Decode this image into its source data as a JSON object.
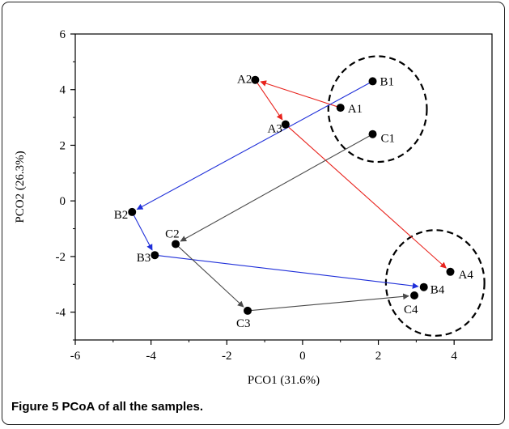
{
  "chart_data": {
    "type": "scatter",
    "title": "",
    "xlabel": "PCO1 (31.6%)",
    "ylabel": "PCO2 (26.3%)",
    "xlim": [
      -6,
      5
    ],
    "ylim": [
      -5,
      6
    ],
    "x_ticks": [
      -6,
      -4,
      -2,
      0,
      2,
      4
    ],
    "y_ticks": [
      -4,
      -2,
      0,
      2,
      4,
      6
    ],
    "grid": false,
    "points": [
      {
        "label": "A1",
        "x": 1.0,
        "y": 3.35
      },
      {
        "label": "A2",
        "x": -1.25,
        "y": 4.35
      },
      {
        "label": "A3",
        "x": -0.45,
        "y": 2.75
      },
      {
        "label": "A4",
        "x": 3.9,
        "y": -2.55
      },
      {
        "label": "B1",
        "x": 1.85,
        "y": 4.3
      },
      {
        "label": "B2",
        "x": -4.5,
        "y": -0.4
      },
      {
        "label": "B3",
        "x": -3.9,
        "y": -1.95
      },
      {
        "label": "B4",
        "x": 3.2,
        "y": -3.1
      },
      {
        "label": "C1",
        "x": 1.85,
        "y": 2.4
      },
      {
        "label": "C2",
        "x": -3.35,
        "y": -1.55
      },
      {
        "label": "C3",
        "x": -1.45,
        "y": -3.95
      },
      {
        "label": "C4",
        "x": 2.95,
        "y": -3.4
      }
    ],
    "trajectories": [
      {
        "group": "A",
        "color": "#e8231d",
        "path": [
          "A1",
          "A2",
          "A3",
          "A4"
        ]
      },
      {
        "group": "B",
        "color": "#1f2fd9",
        "path": [
          "B1",
          "B2",
          "B3",
          "B4"
        ]
      },
      {
        "group": "C",
        "color": "#4a4a4a",
        "path": [
          "C1",
          "C2",
          "C3",
          "C4"
        ]
      }
    ],
    "clusters": [
      {
        "center": [
          1.98,
          3.3
        ],
        "rx": 1.3,
        "ry": 1.9
      },
      {
        "center": [
          3.5,
          -2.95
        ],
        "rx": 1.3,
        "ry": 1.9
      }
    ]
  },
  "caption": {
    "figure_label": "Figure 5",
    "text": "PCoA of all the samples."
  }
}
